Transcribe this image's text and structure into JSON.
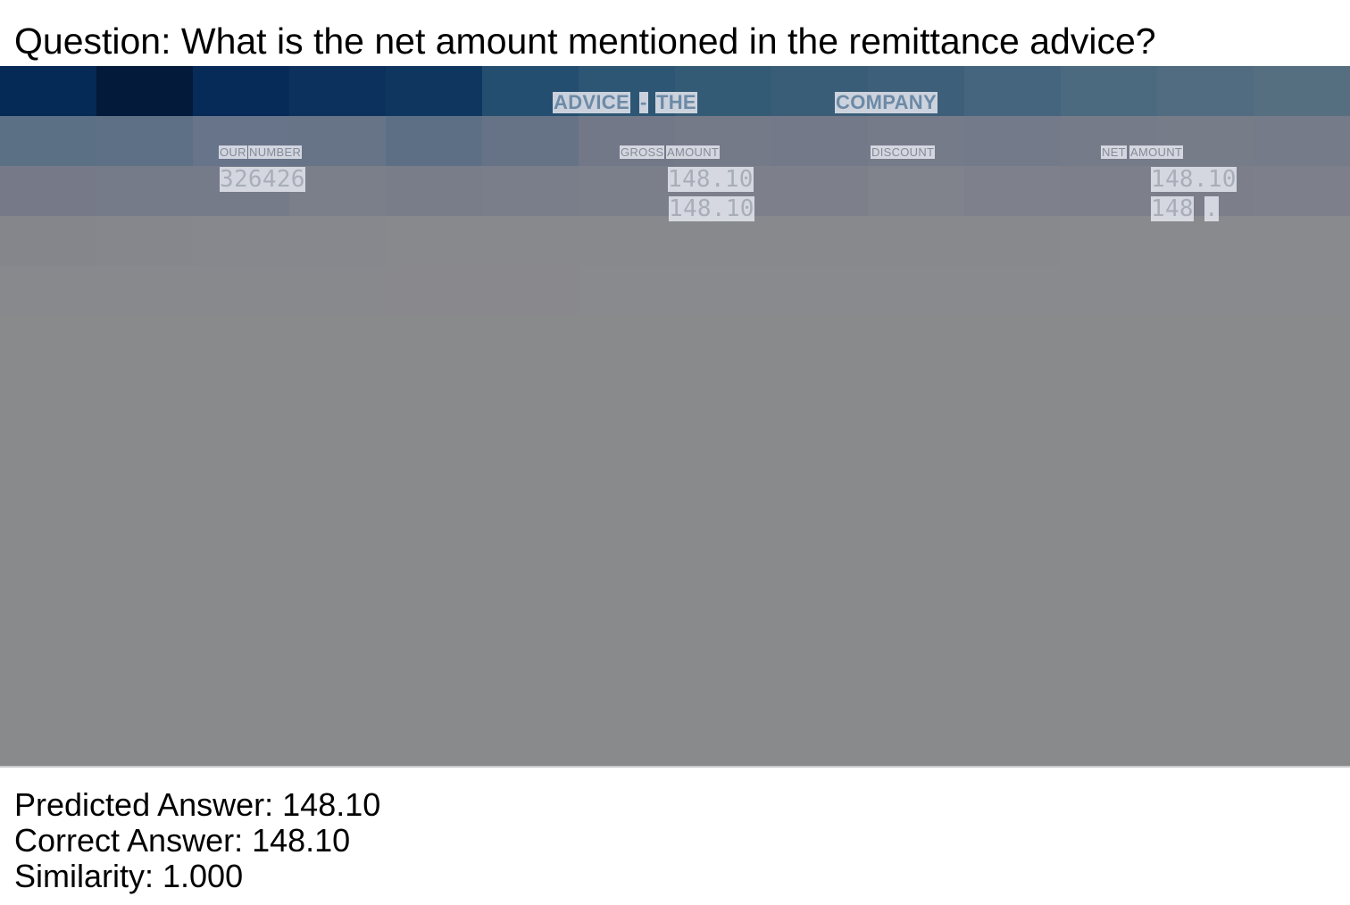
{
  "question": "Question: What is the net amount mentioned in the remittance advice?",
  "document": {
    "title_words": [
      "ADVICE",
      "-",
      "THE",
      "COMPANY"
    ],
    "labels": {
      "our": "OUR",
      "number": "NUMBER",
      "gross": "GROSS",
      "amount_1": "AMOUNT",
      "discount": "DISCOUNT",
      "net": "NET",
      "amount_2": "AMOUNT"
    },
    "values": {
      "our_number": "326426",
      "gross_1": "148.10",
      "gross_2": "148.10",
      "net_1": "148.10",
      "net_2_part1": "148",
      "net_2_part2": "."
    }
  },
  "results": {
    "predicted": "Predicted Answer: 148.10",
    "correct": "Correct Answer: 148.10",
    "similarity": "Similarity: 1.000"
  }
}
